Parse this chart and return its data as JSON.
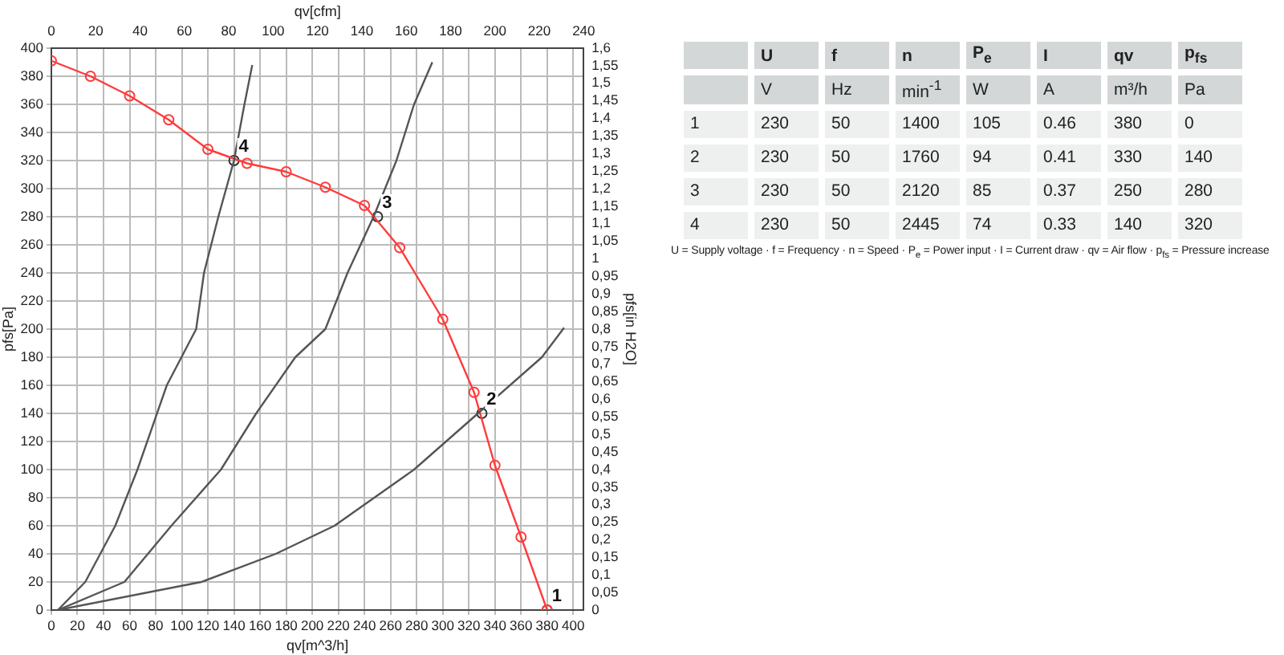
{
  "chart_data": [
    {
      "type": "line",
      "xlabel": "qv[m^3/h]",
      "ylabel": "pfs[Pa]",
      "x2label": "qv[cfm]",
      "y2label": "pfs[in H2O]",
      "xlim": [
        0,
        408
      ],
      "xticks": [
        0,
        20,
        40,
        60,
        80,
        100,
        120,
        140,
        160,
        180,
        200,
        220,
        240,
        260,
        280,
        300,
        320,
        340,
        360,
        380,
        400
      ],
      "x2lim": [
        0,
        240
      ],
      "x2ticks": [
        0,
        20,
        40,
        60,
        80,
        100,
        120,
        140,
        160,
        180,
        200,
        220,
        240
      ],
      "ylim": [
        0,
        400
      ],
      "yticks": [
        0,
        20,
        40,
        60,
        80,
        100,
        120,
        140,
        160,
        180,
        200,
        220,
        240,
        260,
        280,
        300,
        320,
        340,
        360,
        380,
        400
      ],
      "y2lim": [
        0,
        1.6
      ],
      "y2ticks": [
        0,
        {
          "value": 0.05,
          "label": "0,05"
        },
        {
          "value": 0.1,
          "label": "0,1"
        },
        {
          "value": 0.15,
          "label": "0,15"
        },
        {
          "value": 0.2,
          "label": "0,2"
        },
        {
          "value": 0.25,
          "label": "0,25"
        },
        {
          "value": 0.3,
          "label": "0,3"
        },
        {
          "value": 0.35,
          "label": "0,35"
        },
        {
          "value": 0.4,
          "label": "0,4"
        },
        {
          "value": 0.45,
          "label": "0,45"
        },
        {
          "value": 0.5,
          "label": "0,5"
        },
        {
          "value": 0.55,
          "label": "0,55"
        },
        {
          "value": 0.6,
          "label": "0,6"
        },
        {
          "value": 0.65,
          "label": "0,65"
        },
        {
          "value": 0.7,
          "label": "0,7"
        },
        {
          "value": 0.75,
          "label": "0,75"
        },
        {
          "value": 0.8,
          "label": "0,8"
        },
        {
          "value": 0.85,
          "label": "0,85"
        },
        {
          "value": 0.9,
          "label": "0,9"
        },
        {
          "value": 0.95,
          "label": "0,95"
        },
        1,
        {
          "value": 1.05,
          "label": "1,05"
        },
        {
          "value": 1.1,
          "label": "1,1"
        },
        {
          "value": 1.15,
          "label": "1,15"
        },
        {
          "value": 1.2,
          "label": "1,2"
        },
        {
          "value": 1.25,
          "label": "1,25"
        },
        {
          "value": 1.3,
          "label": "1,3"
        },
        {
          "value": 1.35,
          "label": "1,35"
        },
        {
          "value": 1.4,
          "label": "1,4"
        },
        {
          "value": 1.45,
          "label": "1,45"
        },
        {
          "value": 1.5,
          "label": "1,5"
        },
        {
          "value": 1.55,
          "label": "1,55"
        },
        {
          "value": 1.6,
          "label": "1,6"
        }
      ],
      "grid": true,
      "legend": false,
      "series": [
        {
          "type": "line",
          "color": "#555555",
          "marker": "none",
          "x": [
            5,
            26,
            49,
            66,
            88.5,
            111,
            117,
            128,
            140,
            148,
            154
          ],
          "values": [
            0,
            20,
            60,
            100,
            160,
            200,
            240,
            280,
            320,
            360,
            388
          ]
        },
        {
          "type": "line",
          "color": "#555555",
          "marker": "none",
          "x": [
            5,
            56,
            92,
            130,
            157,
            187,
            210,
            227,
            247,
            264.5,
            278,
            292
          ],
          "values": [
            0,
            20,
            60,
            100,
            140,
            180,
            200,
            240,
            280,
            320,
            360,
            390
          ]
        },
        {
          "type": "line",
          "color": "#555555",
          "marker": "none",
          "x": [
            5,
            115,
            172,
            217,
            278,
            327,
            376,
            393
          ],
          "values": [
            0,
            20,
            40,
            60,
            100,
            140,
            180,
            201
          ]
        },
        {
          "type": "line",
          "color": "#ff3b3b",
          "marker": "circle",
          "x": [
            0,
            30,
            60,
            90,
            120,
            150,
            180,
            210,
            240,
            267,
            300,
            324,
            340,
            360,
            380
          ],
          "values": [
            391,
            380,
            366,
            349,
            328,
            318,
            312,
            301,
            288,
            258,
            207,
            155,
            103,
            52,
            0
          ]
        },
        {
          "type": "scatter",
          "color": "#333333",
          "marker": "circle",
          "x": [
            380,
            330,
            250,
            140
          ],
          "values": [
            0,
            140,
            280,
            320
          ]
        }
      ],
      "annotations": [
        {
          "text": "1",
          "x": 380,
          "y": 0
        },
        {
          "text": "2",
          "x": 330,
          "y": 140
        },
        {
          "text": "3",
          "x": 250,
          "y": 280
        },
        {
          "text": "4",
          "x": 140,
          "y": 320
        }
      ]
    },
    {
      "type": "other",
      "annotations": [
        null,
        "U",
        "f",
        "n",
        "P$_{e}$",
        "I",
        "qv",
        "p$_{fs}$",
        null,
        "V",
        "Hz",
        "min$^{-1}$",
        "W",
        "A",
        "m³/h",
        "Pa",
        "1",
        "230",
        "50",
        "1400",
        "105",
        "0.46",
        "380",
        "0",
        "2",
        "230",
        "50",
        "1760",
        "94",
        "0.41",
        "330",
        "140",
        "3",
        "230",
        "50",
        "2120",
        "85",
        "0.37",
        "250",
        "280",
        "4",
        "230",
        "50",
        "2445",
        "74",
        "0.33",
        "140",
        "320",
        "U = Supply voltage · f = Frequency · n = Speed · P$_{e}$ = Power input · I = Current draw · qv = Air flow · p$_{fs}$ = Pressure increase"
      ]
    }
  ]
}
